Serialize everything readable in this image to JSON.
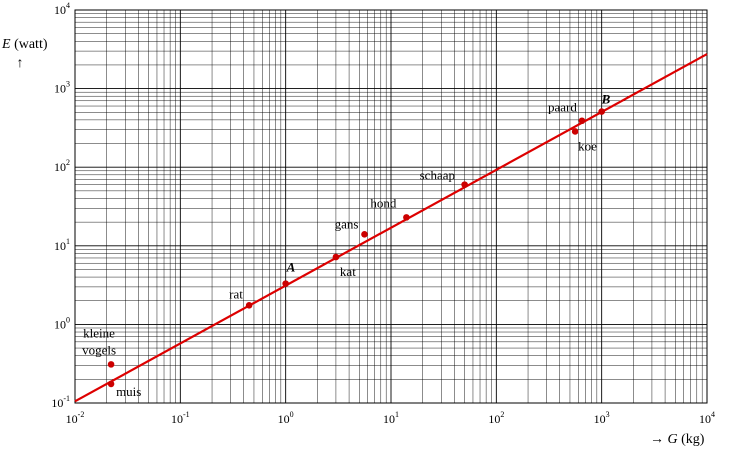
{
  "chart_data": {
    "type": "scatter",
    "scale": {
      "x": "log",
      "y": "log"
    },
    "xlim": [
      0.01,
      10000
    ],
    "ylim": [
      0.1,
      10000
    ],
    "grid": true,
    "x_axis": {
      "arrow": "→",
      "var": "G",
      "unit": "(kg)",
      "ticks": [
        {
          "value": 0.01,
          "base": "10",
          "exp": "-2"
        },
        {
          "value": 0.1,
          "base": "10",
          "exp": "-1"
        },
        {
          "value": 1,
          "base": "10",
          "exp": "0"
        },
        {
          "value": 10,
          "base": "10",
          "exp": "1"
        },
        {
          "value": 100,
          "base": "10",
          "exp": "2"
        },
        {
          "value": 1000,
          "base": "10",
          "exp": "3"
        },
        {
          "value": 10000,
          "base": "10",
          "exp": "4"
        }
      ]
    },
    "y_axis": {
      "arrow": "↑",
      "var": "E",
      "unit": "(watt)",
      "ticks": [
        {
          "value": 0.1,
          "base": "10",
          "exp": "-1"
        },
        {
          "value": 1,
          "base": "10",
          "exp": "0"
        },
        {
          "value": 10,
          "base": "10",
          "exp": "1"
        },
        {
          "value": 100,
          "base": "10",
          "exp": "2"
        },
        {
          "value": 1000,
          "base": "10",
          "exp": "3"
        },
        {
          "value": 10000,
          "base": "10",
          "exp": "4"
        }
      ]
    },
    "line": {
      "color": "#dd0000",
      "x": [
        0.01,
        10000
      ],
      "y": [
        0.105,
        2750
      ]
    },
    "points": [
      {
        "label": "kleine vogels",
        "x": 0.022,
        "y": 0.31
      },
      {
        "label": "muis",
        "x": 0.022,
        "y": 0.175
      },
      {
        "label": "rat",
        "x": 0.45,
        "y": 1.75
      },
      {
        "label": "A",
        "x": 1.0,
        "y": 3.3
      },
      {
        "label": "kat",
        "x": 3.0,
        "y": 7.2
      },
      {
        "label": "gans",
        "x": 5.6,
        "y": 14.0
      },
      {
        "label": "hond",
        "x": 14.0,
        "y": 23.0
      },
      {
        "label": "schaap",
        "x": 50.0,
        "y": 60.0
      },
      {
        "label": "koe",
        "x": 560.0,
        "y": 285.0
      },
      {
        "label": "paard",
        "x": 650.0,
        "y": 390.0
      },
      {
        "label": "B",
        "x": 1000.0,
        "y": 510.0
      }
    ],
    "colors": {
      "line": "#dd0000",
      "point": "#cc0000",
      "grid": "#000000"
    }
  }
}
